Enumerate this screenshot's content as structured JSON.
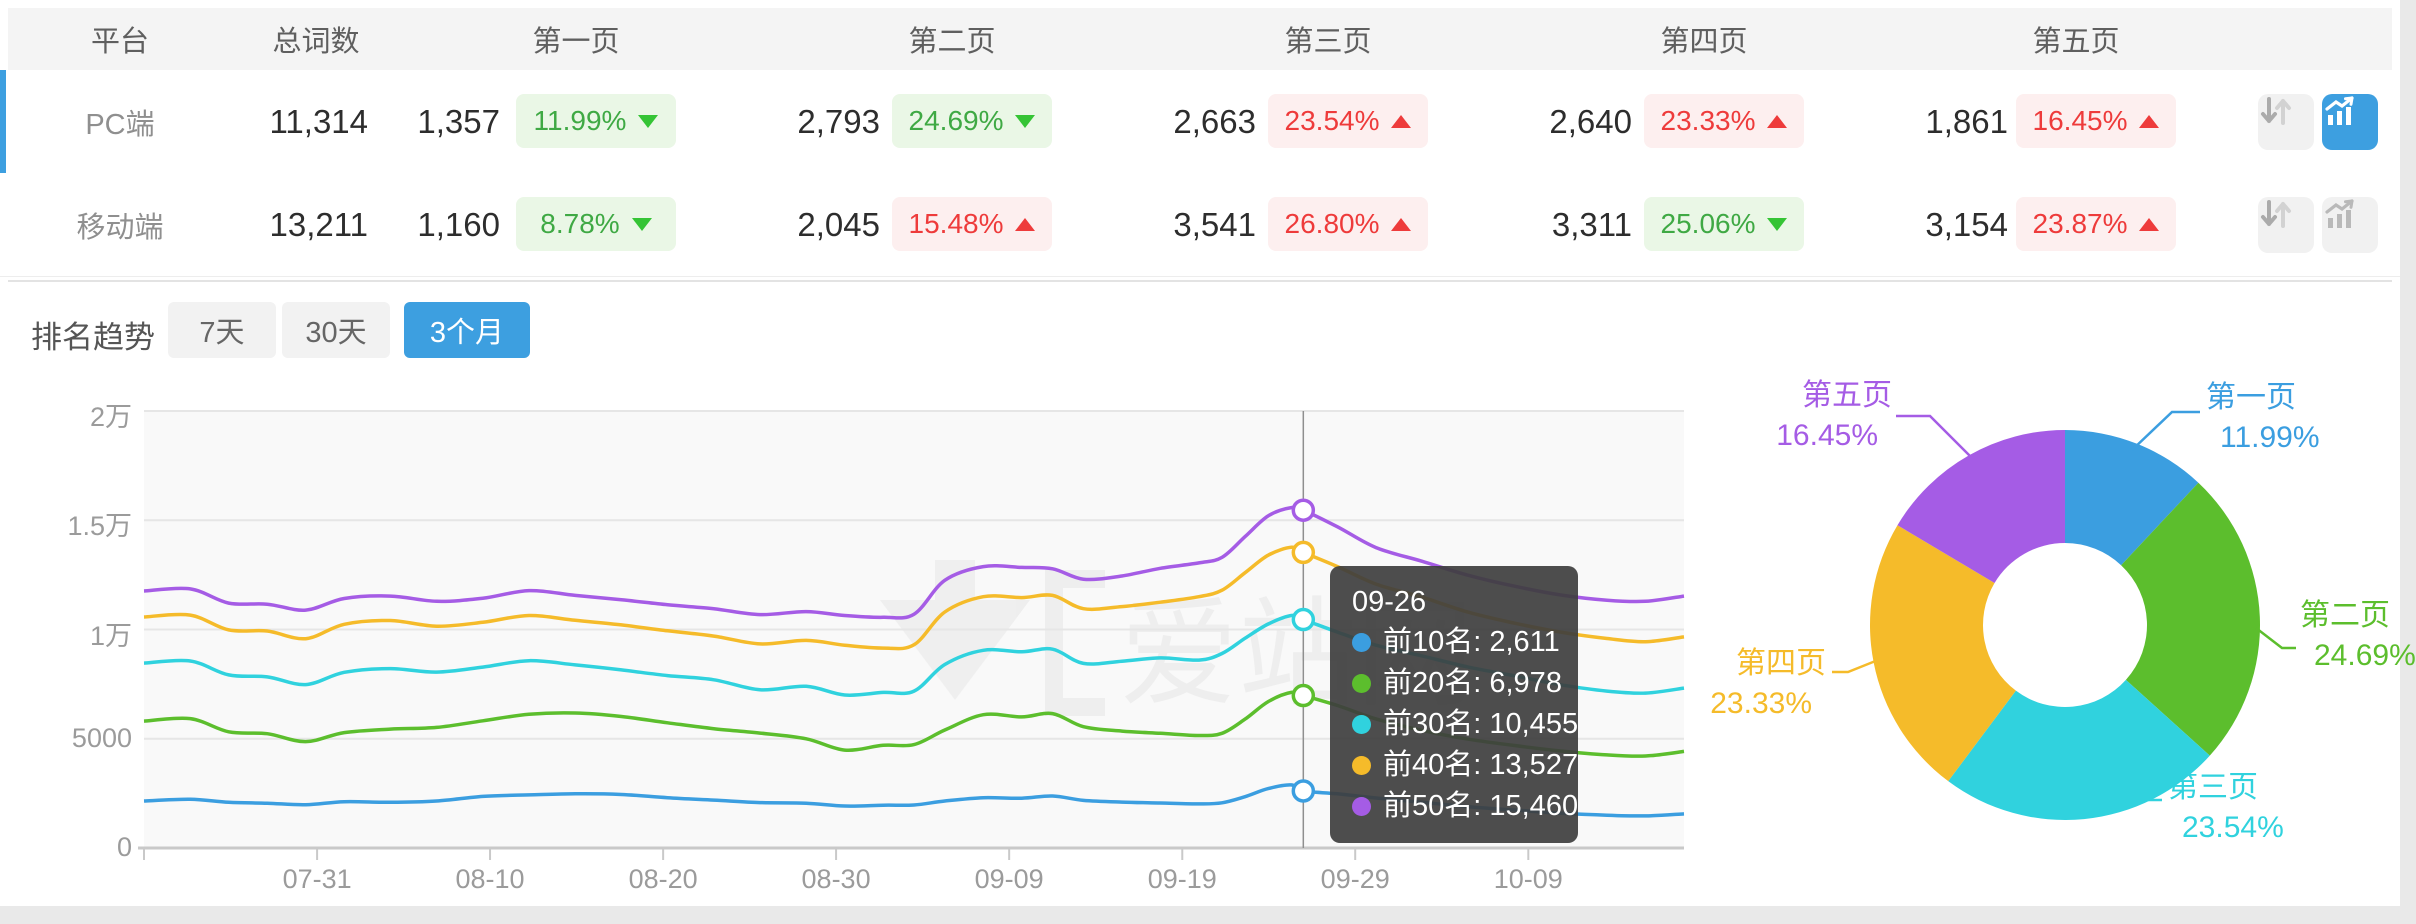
{
  "table": {
    "headers": {
      "platform": "平台",
      "total": "总词数",
      "pages": [
        "第一页",
        "第二页",
        "第三页",
        "第四页",
        "第五页"
      ]
    },
    "rows": [
      {
        "platform": "PC端",
        "total": "11,314",
        "selected": true,
        "pages": [
          {
            "count": "1,357",
            "pct": "11.99%",
            "dir": "down",
            "tone": "green"
          },
          {
            "count": "2,793",
            "pct": "24.69%",
            "dir": "down",
            "tone": "green"
          },
          {
            "count": "2,663",
            "pct": "23.54%",
            "dir": "up",
            "tone": "red"
          },
          {
            "count": "2,640",
            "pct": "23.33%",
            "dir": "up",
            "tone": "red"
          },
          {
            "count": "1,861",
            "pct": "16.45%",
            "dir": "up",
            "tone": "red"
          }
        ],
        "actions": {
          "sort_active": false,
          "chart_active": true
        }
      },
      {
        "platform": "移动端",
        "total": "13,211",
        "selected": false,
        "pages": [
          {
            "count": "1,160",
            "pct": "8.78%",
            "dir": "down",
            "tone": "green"
          },
          {
            "count": "2,045",
            "pct": "15.48%",
            "dir": "up",
            "tone": "red"
          },
          {
            "count": "3,541",
            "pct": "26.80%",
            "dir": "up",
            "tone": "red"
          },
          {
            "count": "3,311",
            "pct": "25.06%",
            "dir": "down",
            "tone": "green"
          },
          {
            "count": "3,154",
            "pct": "23.87%",
            "dir": "up",
            "tone": "red"
          }
        ],
        "actions": {
          "sort_active": false,
          "chart_active": false
        }
      }
    ],
    "icons": [
      "sort-icon",
      "trend-chart-icon"
    ]
  },
  "trend": {
    "title": "排名趋势",
    "tabs": [
      {
        "label": "7天",
        "active": false
      },
      {
        "label": "30天",
        "active": false
      },
      {
        "label": "3个月",
        "active": true
      }
    ],
    "watermark": "爱站网",
    "chart_data": {
      "type": "line",
      "ylim": [
        0,
        20000
      ],
      "y_ticks": [
        {
          "label": "2万",
          "value": 20000
        },
        {
          "label": "1.5万",
          "value": 15000
        },
        {
          "label": "1万",
          "value": 10000
        },
        {
          "label": "5000",
          "value": 5000
        },
        {
          "label": "0",
          "value": 0
        }
      ],
      "x_ticks": [
        {
          "label": "07-31",
          "t": 0.1124
        },
        {
          "label": "08-10",
          "t": 0.2247
        },
        {
          "label": "08-20",
          "t": 0.3371
        },
        {
          "label": "08-30",
          "t": 0.4494
        },
        {
          "label": "09-09",
          "t": 0.5618
        },
        {
          "label": "09-19",
          "t": 0.6742
        },
        {
          "label": "09-29",
          "t": 0.7865
        },
        {
          "label": "10-09",
          "t": 0.8989
        }
      ],
      "cursor": {
        "date": "09-26",
        "t": 0.7528
      },
      "series": [
        {
          "name": "前10名",
          "color": "#3b9ee0",
          "cursor_value": 2611,
          "points": [
            [
              0,
              2150
            ],
            [
              0.03,
              2230
            ],
            [
              0.055,
              2090
            ],
            [
              0.08,
              2050
            ],
            [
              0.105,
              1980
            ],
            [
              0.13,
              2120
            ],
            [
              0.16,
              2090
            ],
            [
              0.19,
              2150
            ],
            [
              0.22,
              2360
            ],
            [
              0.25,
              2430
            ],
            [
              0.28,
              2480
            ],
            [
              0.31,
              2450
            ],
            [
              0.34,
              2300
            ],
            [
              0.37,
              2190
            ],
            [
              0.4,
              2080
            ],
            [
              0.43,
              2050
            ],
            [
              0.455,
              1920
            ],
            [
              0.48,
              1960
            ],
            [
              0.5,
              1970
            ],
            [
              0.52,
              2150
            ],
            [
              0.545,
              2300
            ],
            [
              0.57,
              2280
            ],
            [
              0.59,
              2380
            ],
            [
              0.61,
              2180
            ],
            [
              0.635,
              2100
            ],
            [
              0.66,
              2060
            ],
            [
              0.685,
              2020
            ],
            [
              0.7,
              2070
            ],
            [
              0.715,
              2350
            ],
            [
              0.73,
              2720
            ],
            [
              0.745,
              2890
            ],
            [
              0.7528,
              2611
            ],
            [
              0.775,
              2480
            ],
            [
              0.8,
              2290
            ],
            [
              0.83,
              2090
            ],
            [
              0.86,
              1890
            ],
            [
              0.89,
              1740
            ],
            [
              0.92,
              1590
            ],
            [
              0.95,
              1500
            ],
            [
              0.975,
              1470
            ],
            [
              1,
              1560
            ]
          ]
        },
        {
          "name": "前20名",
          "color": "#5cbe2d",
          "cursor_value": 6978,
          "points": [
            [
              0,
              5810
            ],
            [
              0.03,
              5920
            ],
            [
              0.055,
              5320
            ],
            [
              0.08,
              5230
            ],
            [
              0.105,
              4870
            ],
            [
              0.13,
              5280
            ],
            [
              0.16,
              5440
            ],
            [
              0.19,
              5520
            ],
            [
              0.22,
              5820
            ],
            [
              0.25,
              6120
            ],
            [
              0.28,
              6180
            ],
            [
              0.31,
              6020
            ],
            [
              0.34,
              5730
            ],
            [
              0.37,
              5460
            ],
            [
              0.4,
              5260
            ],
            [
              0.43,
              5000
            ],
            [
              0.455,
              4480
            ],
            [
              0.48,
              4700
            ],
            [
              0.5,
              4730
            ],
            [
              0.52,
              5400
            ],
            [
              0.545,
              6100
            ],
            [
              0.57,
              6000
            ],
            [
              0.59,
              6150
            ],
            [
              0.61,
              5550
            ],
            [
              0.635,
              5350
            ],
            [
              0.66,
              5250
            ],
            [
              0.685,
              5150
            ],
            [
              0.7,
              5250
            ],
            [
              0.715,
              5900
            ],
            [
              0.73,
              6700
            ],
            [
              0.745,
              7120
            ],
            [
              0.7528,
              6978
            ],
            [
              0.775,
              6520
            ],
            [
              0.8,
              5910
            ],
            [
              0.83,
              5380
            ],
            [
              0.86,
              4980
            ],
            [
              0.89,
              4690
            ],
            [
              0.92,
              4440
            ],
            [
              0.95,
              4260
            ],
            [
              0.975,
              4210
            ],
            [
              1,
              4420
            ]
          ]
        },
        {
          "name": "前30名",
          "color": "#30d2de",
          "cursor_value": 10455,
          "points": [
            [
              0,
              8460
            ],
            [
              0.03,
              8560
            ],
            [
              0.055,
              7920
            ],
            [
              0.08,
              7830
            ],
            [
              0.105,
              7480
            ],
            [
              0.13,
              8040
            ],
            [
              0.16,
              8210
            ],
            [
              0.19,
              8050
            ],
            [
              0.22,
              8280
            ],
            [
              0.25,
              8570
            ],
            [
              0.28,
              8380
            ],
            [
              0.31,
              8150
            ],
            [
              0.34,
              7890
            ],
            [
              0.37,
              7700
            ],
            [
              0.4,
              7240
            ],
            [
              0.43,
              7400
            ],
            [
              0.455,
              7000
            ],
            [
              0.48,
              7120
            ],
            [
              0.5,
              7180
            ],
            [
              0.52,
              8400
            ],
            [
              0.545,
              9050
            ],
            [
              0.57,
              8980
            ],
            [
              0.59,
              9100
            ],
            [
              0.61,
              8450
            ],
            [
              0.635,
              8550
            ],
            [
              0.66,
              8700
            ],
            [
              0.685,
              8600
            ],
            [
              0.7,
              8900
            ],
            [
              0.715,
              9600
            ],
            [
              0.73,
              10250
            ],
            [
              0.745,
              10640
            ],
            [
              0.7528,
              10455
            ],
            [
              0.775,
              9880
            ],
            [
              0.8,
              9280
            ],
            [
              0.83,
              8790
            ],
            [
              0.86,
              8280
            ],
            [
              0.89,
              7880
            ],
            [
              0.92,
              7470
            ],
            [
              0.95,
              7180
            ],
            [
              0.975,
              7090
            ],
            [
              1,
              7320
            ]
          ]
        },
        {
          "name": "前40名",
          "color": "#f5bb2a",
          "cursor_value": 13527,
          "points": [
            [
              0,
              10570
            ],
            [
              0.03,
              10660
            ],
            [
              0.055,
              9980
            ],
            [
              0.08,
              9930
            ],
            [
              0.105,
              9580
            ],
            [
              0.13,
              10240
            ],
            [
              0.16,
              10410
            ],
            [
              0.19,
              10150
            ],
            [
              0.22,
              10330
            ],
            [
              0.25,
              10640
            ],
            [
              0.28,
              10420
            ],
            [
              0.31,
              10210
            ],
            [
              0.34,
              9940
            ],
            [
              0.37,
              9700
            ],
            [
              0.4,
              9340
            ],
            [
              0.43,
              9500
            ],
            [
              0.455,
              9280
            ],
            [
              0.48,
              9150
            ],
            [
              0.5,
              9300
            ],
            [
              0.52,
              10800
            ],
            [
              0.545,
              11500
            ],
            [
              0.57,
              11460
            ],
            [
              0.59,
              11560
            ],
            [
              0.61,
              10950
            ],
            [
              0.635,
              11050
            ],
            [
              0.66,
              11250
            ],
            [
              0.685,
              11500
            ],
            [
              0.7,
              11800
            ],
            [
              0.715,
              12600
            ],
            [
              0.73,
              13400
            ],
            [
              0.745,
              13760
            ],
            [
              0.7528,
              13527
            ],
            [
              0.775,
              12880
            ],
            [
              0.8,
              12080
            ],
            [
              0.83,
              11480
            ],
            [
              0.86,
              10790
            ],
            [
              0.89,
              10290
            ],
            [
              0.92,
              9880
            ],
            [
              0.95,
              9590
            ],
            [
              0.975,
              9440
            ],
            [
              1,
              9660
            ]
          ]
        },
        {
          "name": "前50名",
          "color": "#a55ce5",
          "cursor_value": 15460,
          "points": [
            [
              0,
              11760
            ],
            [
              0.03,
              11860
            ],
            [
              0.055,
              11210
            ],
            [
              0.08,
              11160
            ],
            [
              0.105,
              10890
            ],
            [
              0.13,
              11420
            ],
            [
              0.16,
              11530
            ],
            [
              0.19,
              11290
            ],
            [
              0.22,
              11430
            ],
            [
              0.25,
              11780
            ],
            [
              0.28,
              11560
            ],
            [
              0.31,
              11360
            ],
            [
              0.34,
              11130
            ],
            [
              0.37,
              10950
            ],
            [
              0.4,
              10680
            ],
            [
              0.43,
              10820
            ],
            [
              0.455,
              10640
            ],
            [
              0.48,
              10560
            ],
            [
              0.5,
              10700
            ],
            [
              0.52,
              12250
            ],
            [
              0.545,
              12880
            ],
            [
              0.57,
              12840
            ],
            [
              0.59,
              12780
            ],
            [
              0.61,
              12300
            ],
            [
              0.635,
              12450
            ],
            [
              0.66,
              12800
            ],
            [
              0.685,
              13050
            ],
            [
              0.7,
              13300
            ],
            [
              0.715,
              14250
            ],
            [
              0.73,
              15200
            ],
            [
              0.745,
              15580
            ],
            [
              0.7528,
              15460
            ],
            [
              0.775,
              14700
            ],
            [
              0.8,
              13750
            ],
            [
              0.83,
              13120
            ],
            [
              0.86,
              12480
            ],
            [
              0.89,
              11980
            ],
            [
              0.92,
              11580
            ],
            [
              0.95,
              11340
            ],
            [
              0.975,
              11290
            ],
            [
              1,
              11530
            ]
          ]
        }
      ],
      "tooltip": {
        "date": "09-26",
        "items": [
          {
            "name": "前10名",
            "value": "2,611",
            "color": "#3b9ee0"
          },
          {
            "name": "前20名",
            "value": "6,978",
            "color": "#5cbe2d"
          },
          {
            "name": "前30名",
            "value": "10,455",
            "color": "#30d2de"
          },
          {
            "name": "前40名",
            "value": "13,527",
            "color": "#f5bb2a"
          },
          {
            "name": "前50名",
            "value": "15,460",
            "color": "#a55ce5"
          }
        ]
      }
    }
  },
  "donut": {
    "chart_data": {
      "type": "pie",
      "slices": [
        {
          "name": "第一页",
          "pct": "11.99%",
          "value": 11.99,
          "color": "#3b9ee0"
        },
        {
          "name": "第二页",
          "pct": "24.69%",
          "value": 24.69,
          "color": "#5cbe2d"
        },
        {
          "name": "第三页",
          "pct": "23.54%",
          "value": 23.54,
          "color": "#30d2de"
        },
        {
          "name": "第四页",
          "pct": "23.33%",
          "value": 23.33,
          "color": "#f5bb2a"
        },
        {
          "name": "第五页",
          "pct": "16.45%",
          "value": 16.45,
          "color": "#a55ce5"
        }
      ]
    }
  },
  "colors": {
    "accent_blue": "#3d9fe0",
    "green_badge": "#eaf7e6",
    "red_badge": "#fdefef"
  }
}
